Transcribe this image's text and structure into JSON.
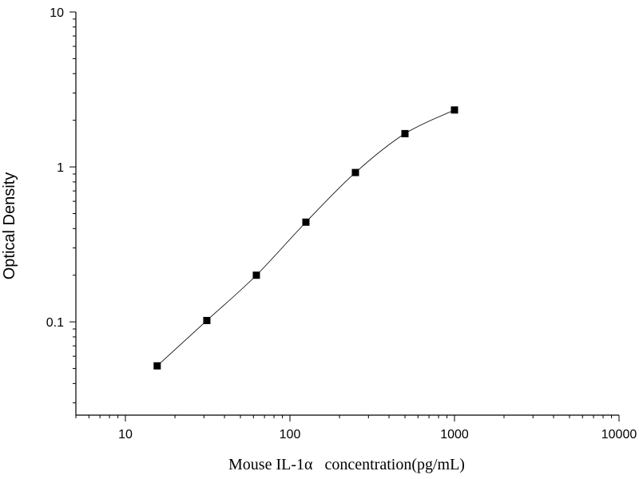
{
  "chart_data": {
    "type": "scatter",
    "title": "",
    "xlabel": "Mouse IL-1α   concentration(pg/mL)",
    "ylabel": "Optical Density",
    "x_scale": "log",
    "y_scale": "log",
    "xlim": [
      5,
      10000
    ],
    "ylim": [
      0.025,
      10
    ],
    "x_tick_labels": [
      "10",
      "100",
      "1000",
      "10000"
    ],
    "y_tick_labels": [
      "0.1",
      "1",
      "10"
    ],
    "x_tick_values": [
      10,
      100,
      1000,
      10000
    ],
    "y_tick_values": [
      0.1,
      1,
      10
    ],
    "grid": false,
    "legend": false,
    "series": [
      {
        "marker": "square",
        "color": "#000000",
        "fit_curve": true,
        "x": [
          15.6,
          31.25,
          62.5,
          125,
          250,
          500,
          1000
        ],
        "y": [
          0.052,
          0.102,
          0.2,
          0.44,
          0.92,
          1.64,
          2.33
        ]
      }
    ],
    "fit_curve_range": [
      15.6,
      1000
    ]
  }
}
